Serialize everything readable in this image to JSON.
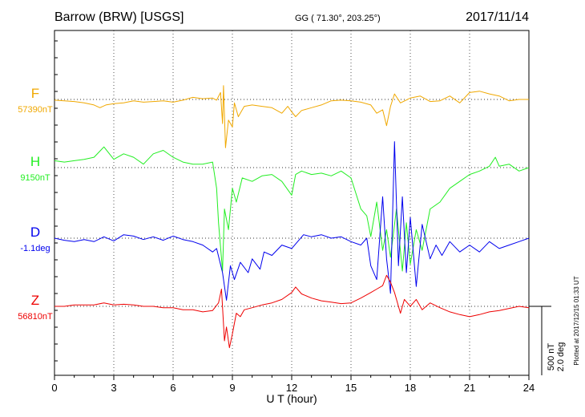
{
  "header": {
    "station": "Barrow (BRW)  [USGS]",
    "coords": "GG ( 71.30°, 203.25°)",
    "date": "2017/11/14"
  },
  "scale": {
    "nt": "500 nT",
    "deg": "2.0 deg",
    "plotted": "Plotted at 2017/12/15 01:33 UT"
  },
  "chart_data": {
    "type": "line",
    "xlabel": "U T (hour)",
    "xlim": [
      0,
      24
    ],
    "xticks": [
      "0",
      "3",
      "6",
      "9",
      "12",
      "15",
      "18",
      "21",
      "24"
    ],
    "grid": true,
    "series": [
      {
        "name": "F",
        "baseline_label": "57390nT",
        "color": "#f0a800",
        "offset_units": 0,
        "values": [
          [
            0,
            -0.01
          ],
          [
            0.5,
            -0.02
          ],
          [
            1,
            -0.03
          ],
          [
            1.5,
            -0.05
          ],
          [
            2,
            -0.08
          ],
          [
            2.3,
            -0.12
          ],
          [
            2.6,
            -0.08
          ],
          [
            3,
            -0.06
          ],
          [
            3.5,
            -0.05
          ],
          [
            4,
            -0.02
          ],
          [
            4.5,
            -0.04
          ],
          [
            5,
            -0.03
          ],
          [
            5.5,
            -0.02
          ],
          [
            6,
            -0.04
          ],
          [
            6.5,
            -0.01
          ],
          [
            7,
            0.03
          ],
          [
            7.5,
            0.01
          ],
          [
            8,
            0.02
          ],
          [
            8.2,
            -0.01
          ],
          [
            8.4,
            0.1
          ],
          [
            8.5,
            -0.35
          ],
          [
            8.55,
            0.2
          ],
          [
            8.65,
            -0.7
          ],
          [
            8.8,
            -0.3
          ],
          [
            9,
            -0.4
          ],
          [
            9.1,
            -0.05
          ],
          [
            9.3,
            -0.25
          ],
          [
            9.6,
            -0.1
          ],
          [
            10,
            -0.08
          ],
          [
            10.5,
            -0.1
          ],
          [
            11,
            -0.12
          ],
          [
            11.5,
            -0.2
          ],
          [
            11.8,
            -0.1
          ],
          [
            12,
            -0.18
          ],
          [
            12.2,
            -0.25
          ],
          [
            12.5,
            -0.16
          ],
          [
            13,
            -0.12
          ],
          [
            13.5,
            -0.08
          ],
          [
            14,
            -0.02
          ],
          [
            14.5,
            -0.01
          ],
          [
            15,
            -0.02
          ],
          [
            15.5,
            -0.04
          ],
          [
            16,
            -0.08
          ],
          [
            16.3,
            -0.2
          ],
          [
            16.6,
            -0.15
          ],
          [
            16.8,
            -0.38
          ],
          [
            17,
            -0.1
          ],
          [
            17.2,
            0.08
          ],
          [
            17.5,
            -0.05
          ],
          [
            18,
            0.02
          ],
          [
            18.5,
            0.05
          ],
          [
            19,
            -0.03
          ],
          [
            19.5,
            -0.02
          ],
          [
            20,
            0.05
          ],
          [
            20.5,
            -0.05
          ],
          [
            21,
            0.1
          ],
          [
            21.5,
            0.12
          ],
          [
            22,
            0.08
          ],
          [
            22.5,
            0.05
          ],
          [
            23,
            -0.02
          ],
          [
            23.5,
            0.0
          ],
          [
            24,
            0.0
          ]
        ]
      },
      {
        "name": "H",
        "baseline_label": "9150nT",
        "color": "#22ee22",
        "offset_units": 0,
        "values": [
          [
            0,
            0.1
          ],
          [
            0.5,
            0.08
          ],
          [
            1,
            0.1
          ],
          [
            1.5,
            0.12
          ],
          [
            2,
            0.15
          ],
          [
            2.5,
            0.3
          ],
          [
            3,
            0.12
          ],
          [
            3.5,
            0.2
          ],
          [
            4,
            0.15
          ],
          [
            4.5,
            0.05
          ],
          [
            5,
            0.2
          ],
          [
            5.5,
            0.25
          ],
          [
            6,
            0.15
          ],
          [
            6.5,
            0.08
          ],
          [
            7,
            0.05
          ],
          [
            7.5,
            0.05
          ],
          [
            8,
            0.08
          ],
          [
            8.2,
            -0.3
          ],
          [
            8.3,
            -0.8
          ],
          [
            8.5,
            -1.5
          ],
          [
            8.6,
            -0.6
          ],
          [
            8.8,
            -0.9
          ],
          [
            9,
            -0.3
          ],
          [
            9.2,
            -0.5
          ],
          [
            9.5,
            -0.15
          ],
          [
            10,
            -0.2
          ],
          [
            10.5,
            -0.12
          ],
          [
            11,
            -0.1
          ],
          [
            11.5,
            -0.2
          ],
          [
            12,
            -0.4
          ],
          [
            12.2,
            -0.1
          ],
          [
            12.5,
            -0.05
          ],
          [
            13,
            -0.1
          ],
          [
            13.5,
            -0.08
          ],
          [
            14,
            -0.12
          ],
          [
            14.5,
            -0.05
          ],
          [
            15,
            -0.15
          ],
          [
            15.5,
            -0.6
          ],
          [
            15.8,
            -0.7
          ],
          [
            16,
            -1.0
          ],
          [
            16.3,
            -0.5
          ],
          [
            16.6,
            -1.2
          ],
          [
            16.8,
            -0.9
          ],
          [
            17,
            -1.3
          ],
          [
            17.3,
            -0.6
          ],
          [
            17.6,
            -1.5
          ],
          [
            17.8,
            -0.8
          ],
          [
            18,
            -1.4
          ],
          [
            18.3,
            -0.9
          ],
          [
            18.6,
            -1.2
          ],
          [
            19,
            -0.6
          ],
          [
            19.5,
            -0.5
          ],
          [
            20,
            -0.3
          ],
          [
            20.5,
            -0.2
          ],
          [
            21,
            -0.1
          ],
          [
            21.5,
            -0.05
          ],
          [
            22,
            0.02
          ],
          [
            22.3,
            0.15
          ],
          [
            22.5,
            0.02
          ],
          [
            23,
            0.05
          ],
          [
            23.5,
            -0.05
          ],
          [
            24,
            0.0
          ]
        ]
      },
      {
        "name": "D",
        "baseline_label": "-1.1deg",
        "color": "#0000ee",
        "offset_units": 0,
        "values": [
          [
            0,
            0.0
          ],
          [
            0.5,
            -0.03
          ],
          [
            1,
            -0.05
          ],
          [
            1.5,
            -0.02
          ],
          [
            2,
            -0.05
          ],
          [
            2.5,
            0.02
          ],
          [
            3,
            -0.04
          ],
          [
            3.5,
            0.05
          ],
          [
            4,
            0.03
          ],
          [
            4.5,
            -0.02
          ],
          [
            5,
            0.02
          ],
          [
            5.5,
            -0.03
          ],
          [
            6,
            0.03
          ],
          [
            6.5,
            -0.02
          ],
          [
            7,
            -0.05
          ],
          [
            7.5,
            -0.1
          ],
          [
            8,
            -0.2
          ],
          [
            8.2,
            -0.15
          ],
          [
            8.5,
            -0.5
          ],
          [
            8.7,
            -0.9
          ],
          [
            8.9,
            -0.4
          ],
          [
            9.1,
            -0.6
          ],
          [
            9.4,
            -0.35
          ],
          [
            9.8,
            -0.5
          ],
          [
            10,
            -0.3
          ],
          [
            10.4,
            -0.45
          ],
          [
            10.6,
            -0.2
          ],
          [
            11,
            -0.25
          ],
          [
            11.5,
            -0.1
          ],
          [
            12,
            -0.15
          ],
          [
            12.3,
            -0.05
          ],
          [
            12.6,
            0.05
          ],
          [
            13,
            0.02
          ],
          [
            13.5,
            0.05
          ],
          [
            14,
            0.0
          ],
          [
            14.5,
            0.02
          ],
          [
            15,
            -0.05
          ],
          [
            15.5,
            -0.1
          ],
          [
            15.8,
            0.0
          ],
          [
            16,
            -0.4
          ],
          [
            16.3,
            -0.6
          ],
          [
            16.6,
            0.6
          ],
          [
            16.8,
            -0.3
          ],
          [
            17,
            -0.8
          ],
          [
            17.2,
            1.4
          ],
          [
            17.4,
            -0.4
          ],
          [
            17.6,
            0.6
          ],
          [
            17.8,
            -0.5
          ],
          [
            18,
            0.3
          ],
          [
            18.3,
            -0.7
          ],
          [
            18.6,
            0.2
          ],
          [
            19,
            -0.3
          ],
          [
            19.3,
            -0.1
          ],
          [
            19.6,
            -0.25
          ],
          [
            20,
            -0.05
          ],
          [
            20.5,
            -0.2
          ],
          [
            21,
            -0.1
          ],
          [
            21.5,
            -0.2
          ],
          [
            22,
            -0.05
          ],
          [
            22.5,
            -0.15
          ],
          [
            23,
            -0.1
          ],
          [
            23.5,
            -0.05
          ],
          [
            24,
            0.0
          ]
        ]
      },
      {
        "name": "Z",
        "baseline_label": "56810nT",
        "color": "#ee0000",
        "offset_units": 0,
        "values": [
          [
            0,
            0.0
          ],
          [
            0.5,
            0.0
          ],
          [
            1,
            0.02
          ],
          [
            1.5,
            0.02
          ],
          [
            2,
            0.02
          ],
          [
            2.5,
            0.05
          ],
          [
            3,
            0.02
          ],
          [
            3.5,
            0.03
          ],
          [
            4,
            0.02
          ],
          [
            4.5,
            0.0
          ],
          [
            5,
            0.0
          ],
          [
            5.5,
            -0.02
          ],
          [
            6,
            -0.02
          ],
          [
            6.5,
            -0.05
          ],
          [
            7,
            -0.05
          ],
          [
            7.5,
            -0.08
          ],
          [
            8,
            -0.06
          ],
          [
            8.3,
            0.05
          ],
          [
            8.45,
            0.25
          ],
          [
            8.6,
            -0.5
          ],
          [
            8.7,
            -0.3
          ],
          [
            8.85,
            -0.6
          ],
          [
            9,
            -0.4
          ],
          [
            9.2,
            -0.1
          ],
          [
            9.4,
            -0.15
          ],
          [
            9.6,
            -0.05
          ],
          [
            10,
            -0.02
          ],
          [
            10.5,
            0.02
          ],
          [
            11,
            0.05
          ],
          [
            11.5,
            0.1
          ],
          [
            12,
            0.2
          ],
          [
            12.2,
            0.28
          ],
          [
            12.5,
            0.18
          ],
          [
            13,
            0.12
          ],
          [
            13.5,
            0.08
          ],
          [
            14,
            0.06
          ],
          [
            14.5,
            0.04
          ],
          [
            15,
            0.05
          ],
          [
            15.5,
            0.12
          ],
          [
            16,
            0.2
          ],
          [
            16.3,
            0.25
          ],
          [
            16.6,
            0.3
          ],
          [
            16.8,
            0.45
          ],
          [
            17,
            0.35
          ],
          [
            17.2,
            0.2
          ],
          [
            17.5,
            -0.1
          ],
          [
            17.7,
            0.1
          ],
          [
            18,
            0.0
          ],
          [
            18.3,
            0.1
          ],
          [
            18.6,
            -0.05
          ],
          [
            19,
            0.05
          ],
          [
            19.5,
            -0.02
          ],
          [
            20,
            -0.08
          ],
          [
            20.5,
            -0.12
          ],
          [
            21,
            -0.15
          ],
          [
            21.5,
            -0.12
          ],
          [
            22,
            -0.08
          ],
          [
            22.5,
            -0.06
          ],
          [
            23,
            -0.03
          ],
          [
            23.5,
            0.0
          ],
          [
            24,
            -0.02
          ]
        ]
      }
    ]
  }
}
